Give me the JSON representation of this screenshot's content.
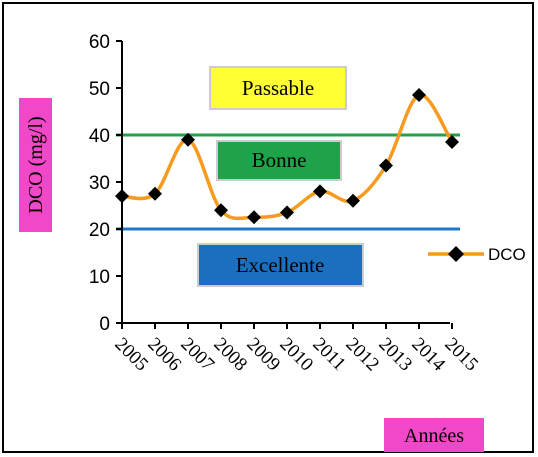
{
  "chart_data": {
    "type": "line",
    "title": "",
    "xlabel": "Années",
    "ylabel": "DCO (mg/l)",
    "categories": [
      "2005",
      "2006",
      "2007",
      "2008",
      "2009",
      "2010",
      "2011",
      "2012",
      "2013",
      "2014",
      "2015"
    ],
    "series": [
      {
        "name": "DCO",
        "values": [
          27,
          27.5,
          39,
          24,
          22.5,
          23.5,
          28,
          26,
          33.5,
          48.5,
          38.5
        ],
        "color": "#F79A1E"
      }
    ],
    "ylim": [
      0,
      60
    ],
    "yticks": [
      0,
      10,
      20,
      30,
      40,
      50,
      60
    ],
    "thresholds": [
      {
        "value": 40,
        "color": "#22A04A"
      },
      {
        "value": 20,
        "color": "#1F78C8"
      }
    ],
    "zones": [
      {
        "label": "Passable",
        "bg": "#FFFF33",
        "text_color": "#000000"
      },
      {
        "label": "Bonne",
        "bg": "#1FA34A",
        "text_color": "#000000"
      },
      {
        "label": "Excellente",
        "bg": "#1B6FBE",
        "text_color": "#000000"
      }
    ],
    "legend_position": "right",
    "grid": false,
    "label_highlight": "#F048C8"
  }
}
